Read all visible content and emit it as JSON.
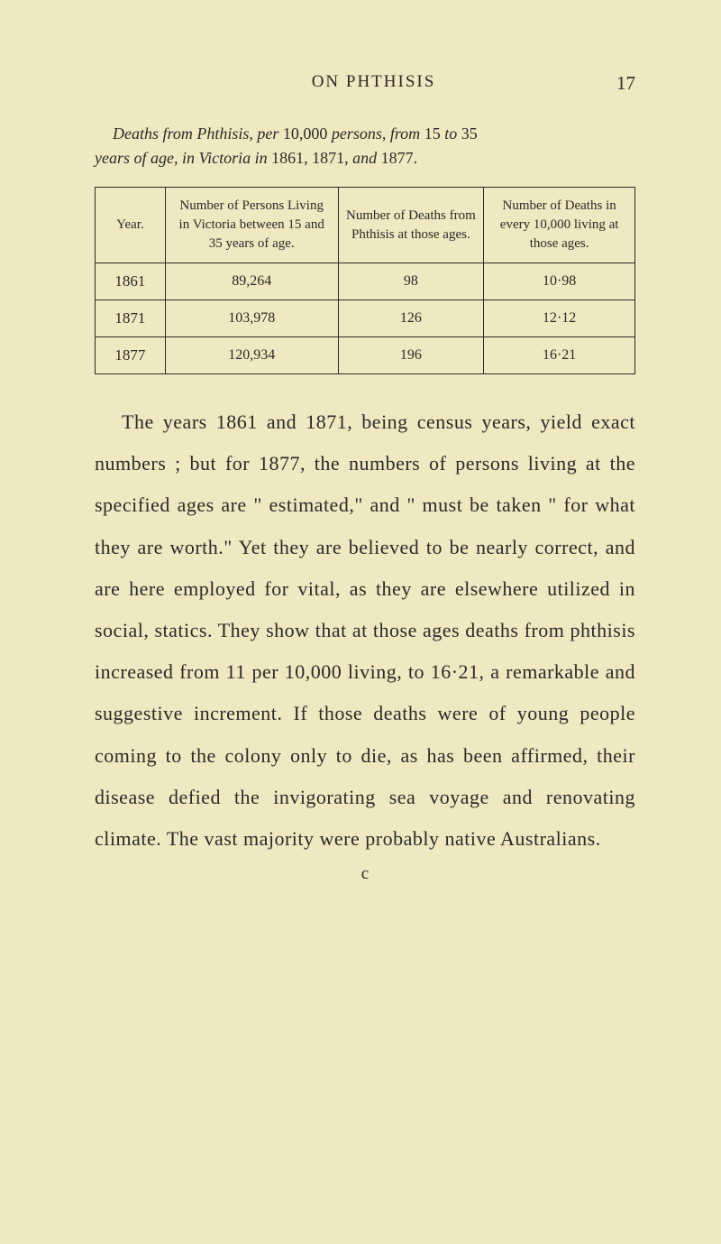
{
  "header": {
    "title": "ON PHTHISIS",
    "page_number": "17"
  },
  "caption": {
    "line1_italic_a": "Deaths from Phthisis, per",
    "line1_normal_a": " 10,000 ",
    "line1_italic_b": "persons, from",
    "line1_normal_b": " 15 ",
    "line1_italic_c": "to",
    "line1_normal_c": " 35",
    "line2_italic_a": "years of age, in Victoria in",
    "line2_normal_a": " 1861, 1871, ",
    "line2_italic_b": "and",
    "line2_normal_b": " 1877."
  },
  "table": {
    "columns": [
      "Year.",
      "Number of Persons Living in Victoria between 15 and 35 years of age.",
      "Number of Deaths from Phthisis at those ages.",
      "Number of Deaths in every 10,000 living at those ages."
    ],
    "rows": [
      [
        "1861",
        "89,264",
        "98",
        "10·98"
      ],
      [
        "1871",
        "103,978",
        "126",
        "12·12"
      ],
      [
        "1877",
        "120,934",
        "196",
        "16·21"
      ]
    ],
    "col_widths": [
      "13%",
      "32%",
      "27%",
      "28%"
    ]
  },
  "body": {
    "paragraph": "The years 1861 and 1871, being census years, yield exact numbers ; but for 1877, the numbers of persons living at the specified ages are \" estimated,\" and \" must be taken \" for what they are worth.\" Yet they are believed to be nearly correct, and are here employed for vital, as they are elsewhere utilized in social, statics. They show that at those ages deaths from phthisis increased from 11 per 10,000 living, to 16·21, a remarkable and suggestive increment. If those deaths were of young people coming to the colony only to die, as has been affirmed, their disease defied the invigorating sea voyage and renovating climate. The vast majority were probably native Australians."
  },
  "signature": "c",
  "colors": {
    "background": "#f0e8c0",
    "text": "#2a2a2a",
    "border": "#2a2a2a"
  },
  "typography": {
    "body_fontsize": 22,
    "caption_fontsize": 18,
    "header_fontsize": 19,
    "table_header_fontsize": 15,
    "table_cell_fontsize": 16
  }
}
